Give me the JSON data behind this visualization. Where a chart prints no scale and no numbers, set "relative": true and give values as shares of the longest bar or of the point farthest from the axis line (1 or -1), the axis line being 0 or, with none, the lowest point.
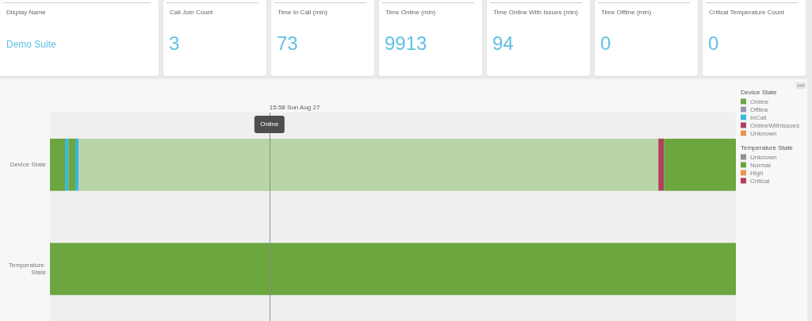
{
  "chart_data": [
    {
      "type": "other",
      "categories": [
        "Display Name",
        "Call Join Count",
        "Time In Call (min)",
        "Time Online (min)",
        "Time Online With Issues (min)",
        "Time Offline (min)",
        "Critical Temperature Count"
      ],
      "value_labels": [
        "Demo Suite",
        "3",
        "73",
        "9913",
        "94",
        "0",
        "0"
      ]
    },
    {
      "type": "bar",
      "orientation": "horizontal",
      "stacked": true,
      "relative": true,
      "categories": [
        "Device State",
        "Temperature State"
      ],
      "series": [
        {
          "name": "Online",
          "color": "#6ba63f",
          "values": [
            0.022,
            null
          ]
        },
        {
          "name": "Offline",
          "color": "#9a96aa",
          "values": [
            0,
            null
          ]
        },
        {
          "name": "InCall",
          "color": "#3ab7de",
          "values": [
            0.005,
            null
          ]
        },
        {
          "color": "#6ba63f",
          "values": [
            0.01,
            null
          ]
        },
        {
          "color": "#3ab7de",
          "values": [
            0.005,
            null
          ]
        },
        {
          "color": "#b9d4a6",
          "values": [
            0.845,
            null
          ]
        },
        {
          "name": "OnlineWithIssues",
          "color": "#b0405c",
          "values": [
            0.008,
            null
          ]
        },
        {
          "name": "Unknown",
          "color": "#e8935a",
          "values": [
            0,
            null
          ]
        },
        {
          "color": "#6ba63f",
          "values": [
            0.105,
            null
          ]
        },
        {
          "name": "Unknown",
          "color": "#8f8f8f",
          "values": [
            null,
            0
          ]
        },
        {
          "name": "Normal",
          "color": "#6ba63f",
          "values": [
            null,
            1
          ]
        },
        {
          "name": "High",
          "color": "#ec9652",
          "values": [
            null,
            0
          ]
        },
        {
          "name": "Critical",
          "color": "#b0405c",
          "values": [
            null,
            0
          ]
        }
      ],
      "legend": "top right",
      "ref_lines": [
        {
          "axis": "x",
          "value": 0.32,
          "color": "#8c8c8c"
        }
      ],
      "annotations": [
        "15:58 Sun Aug 27",
        {
          "text": "Online",
          "x": 0.32
        }
      ]
    }
  ]
}
